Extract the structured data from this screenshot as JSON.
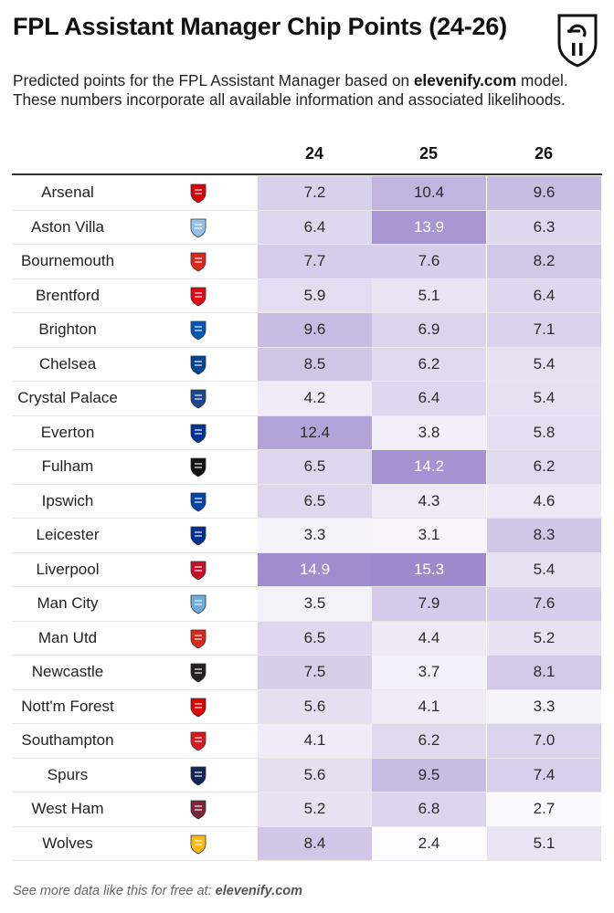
{
  "title": "FPL Assistant Manager Chip Points (24-26)",
  "subtitle": {
    "part1": "Predicted points for the FPL Assistant Manager based on ",
    "site": "elevenify.com",
    "part2": " model. These numbers incorporate all available information and associated likelihoods."
  },
  "footer": {
    "text": "See more data like this for free at: ",
    "site": "elevenify.com"
  },
  "colors": {
    "scale_low": "#ffffff",
    "scale_high": "#9b88cc"
  },
  "chart_data": {
    "type": "table",
    "columns": [
      "24",
      "25",
      "26"
    ],
    "rows": [
      {
        "team": "Arsenal",
        "crest_icon": "arsenal-crest-icon",
        "crest_color": "#db0007",
        "values": [
          7.2,
          10.4,
          9.6
        ]
      },
      {
        "team": "Aston Villa",
        "crest_icon": "aston-villa-crest-icon",
        "crest_color": "#95bfe5",
        "values": [
          6.4,
          13.9,
          6.3
        ]
      },
      {
        "team": "Bournemouth",
        "crest_icon": "bournemouth-crest-icon",
        "crest_color": "#da291c",
        "values": [
          7.7,
          7.6,
          8.2
        ]
      },
      {
        "team": "Brentford",
        "crest_icon": "brentford-crest-icon",
        "crest_color": "#e30613",
        "values": [
          5.9,
          5.1,
          6.4
        ]
      },
      {
        "team": "Brighton",
        "crest_icon": "brighton-crest-icon",
        "crest_color": "#0057b8",
        "values": [
          9.6,
          6.9,
          7.1
        ]
      },
      {
        "team": "Chelsea",
        "crest_icon": "chelsea-crest-icon",
        "crest_color": "#034694",
        "values": [
          8.5,
          6.2,
          5.4
        ]
      },
      {
        "team": "Crystal Palace",
        "crest_icon": "crystal-palace-crest-icon",
        "crest_color": "#1b458f",
        "values": [
          4.2,
          6.4,
          5.4
        ]
      },
      {
        "team": "Everton",
        "crest_icon": "everton-crest-icon",
        "crest_color": "#003399",
        "values": [
          12.4,
          3.8,
          5.8
        ]
      },
      {
        "team": "Fulham",
        "crest_icon": "fulham-crest-icon",
        "crest_color": "#111111",
        "values": [
          6.5,
          14.2,
          6.2
        ]
      },
      {
        "team": "Ipswich",
        "crest_icon": "ipswich-crest-icon",
        "crest_color": "#0044a9",
        "values": [
          6.5,
          4.3,
          4.6
        ]
      },
      {
        "team": "Leicester",
        "crest_icon": "leicester-crest-icon",
        "crest_color": "#003090",
        "values": [
          3.3,
          3.1,
          8.3
        ]
      },
      {
        "team": "Liverpool",
        "crest_icon": "liverpool-crest-icon",
        "crest_color": "#c8102e",
        "values": [
          14.9,
          15.3,
          5.4
        ]
      },
      {
        "team": "Man City",
        "crest_icon": "man-city-crest-icon",
        "crest_color": "#6cabdd",
        "values": [
          3.5,
          7.9,
          7.6
        ]
      },
      {
        "team": "Man Utd",
        "crest_icon": "man-utd-crest-icon",
        "crest_color": "#da291c",
        "values": [
          6.5,
          4.4,
          5.2
        ]
      },
      {
        "team": "Newcastle",
        "crest_icon": "newcastle-crest-icon",
        "crest_color": "#241f20",
        "values": [
          7.5,
          3.7,
          8.1
        ]
      },
      {
        "team": "Nott'm Forest",
        "crest_icon": "nottm-forest-crest-icon",
        "crest_color": "#dd0000",
        "values": [
          5.6,
          4.1,
          3.3
        ]
      },
      {
        "team": "Southampton",
        "crest_icon": "southampton-crest-icon",
        "crest_color": "#d71920",
        "values": [
          4.1,
          6.2,
          7.0
        ]
      },
      {
        "team": "Spurs",
        "crest_icon": "spurs-crest-icon",
        "crest_color": "#132257",
        "values": [
          5.6,
          9.5,
          7.4
        ]
      },
      {
        "team": "West Ham",
        "crest_icon": "west-ham-crest-icon",
        "crest_color": "#7a263a",
        "values": [
          5.2,
          6.8,
          2.7
        ]
      },
      {
        "team": "Wolves",
        "crest_icon": "wolves-crest-icon",
        "crest_color": "#fdb913",
        "values": [
          8.4,
          2.4,
          5.1
        ]
      }
    ]
  }
}
